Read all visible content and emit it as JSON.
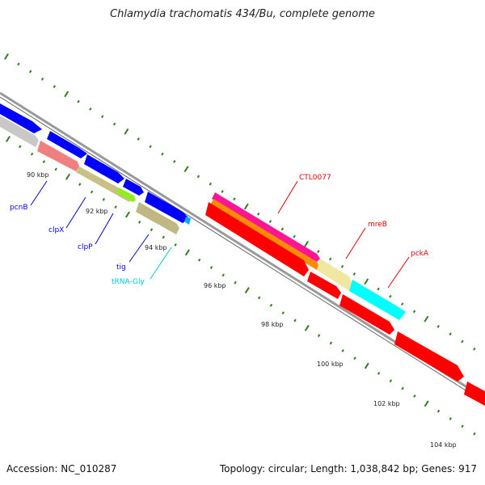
{
  "title": "Chlamydia trachomatis 434/Bu, complete genome",
  "accession": "Accession: NC_010287",
  "topology": "Topology: circular; Length: 1,038,842 bp; Genes: 917",
  "tick_labels": [
    "90 kbp",
    "92 kbp",
    "94 kbp",
    "96 kbp",
    "98 kbp",
    "100 kbp",
    "102 kbp",
    "104 kbp"
  ],
  "genes_minus": [
    {
      "label": "pcnB",
      "color": "#0000ff"
    },
    {
      "label": "clpX",
      "color": "#0000ff"
    },
    {
      "label": "clpP",
      "color": "#0000ff"
    },
    {
      "label": "tig",
      "color": "#0000ff"
    },
    {
      "label": "tRNA-Gly",
      "color": "#00c8d8"
    }
  ],
  "genes_plus": [
    {
      "label": "CTL0077",
      "color": "#e00000"
    },
    {
      "label": "mreB",
      "color": "#e00000"
    },
    {
      "label": "pckA",
      "color": "#e00000"
    }
  ],
  "colors": {
    "backbone": "#888888",
    "forward_cds": "#0000ff",
    "reverse_cds": "#ff0000",
    "tick": "#2e7d1e"
  }
}
